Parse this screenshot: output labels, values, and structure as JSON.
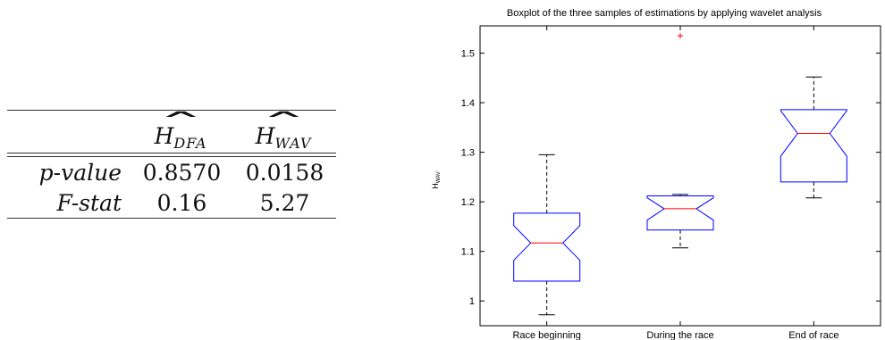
{
  "table": {
    "headers": [
      {
        "sym": "H",
        "sub": "DFA"
      },
      {
        "sym": "H",
        "sub": "WAV"
      }
    ],
    "rows": [
      {
        "label": "p-value",
        "values": [
          "0.8570",
          "0.0158"
        ]
      },
      {
        "label": "F-stat",
        "values": [
          "0.16",
          "5.27"
        ]
      }
    ]
  },
  "chart_data": {
    "type": "boxplot",
    "title": "Boxplot of the three samples of estimations by applying wavelet analysis",
    "ylabel": {
      "main": "H",
      "sub": "WAV"
    },
    "xlabel": "",
    "ylim": [
      0.95,
      1.555
    ],
    "yticks": [
      1,
      1.1,
      1.2,
      1.3,
      1.4,
      1.5
    ],
    "ytick_labels": [
      "1",
      "1.1",
      "1.2",
      "1.3",
      "1.4",
      "1.5"
    ],
    "categories": [
      "Race beginning",
      "During the race",
      "End of race"
    ],
    "notch": true,
    "boxes": [
      {
        "whisker_low": 0.972,
        "q1": 1.04,
        "median": 1.117,
        "q3": 1.177,
        "whisker_high": 1.295,
        "notch_low": 1.082,
        "notch_high": 1.152,
        "outliers": []
      },
      {
        "whisker_low": 1.107,
        "q1": 1.143,
        "median": 1.186,
        "q3": 1.212,
        "whisker_high": 1.215,
        "notch_low": 1.163,
        "notch_high": 1.208,
        "outliers": [
          1.535
        ]
      },
      {
        "whisker_low": 1.208,
        "q1": 1.24,
        "median": 1.338,
        "q3": 1.386,
        "whisker_high": 1.452,
        "notch_low": 1.292,
        "notch_high": 1.384,
        "outliers": []
      }
    ],
    "colors": {
      "box": "#0000ff",
      "median": "#ff0000",
      "whisker": "#000000",
      "outlier": "#ff0000"
    }
  }
}
